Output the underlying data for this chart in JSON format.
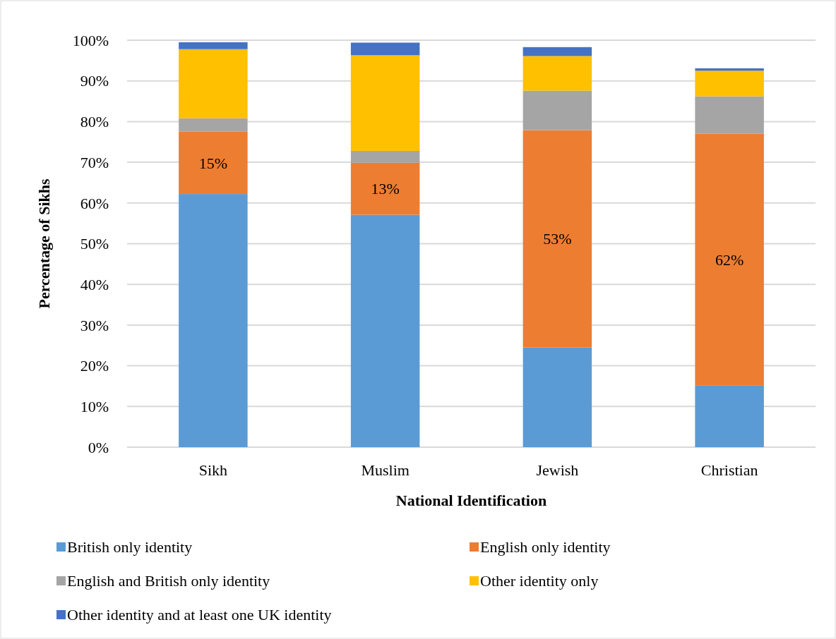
{
  "chart_data": {
    "type": "bar",
    "stacked": true,
    "xlabel": "National Identification",
    "ylabel": "Percentage of Sikhs",
    "categories": [
      "Sikh",
      "Muslim",
      "Jewish",
      "Christian"
    ],
    "ylim": [
      0,
      100
    ],
    "yticks": [
      {
        "value": 0,
        "label": "0%"
      },
      {
        "value": 10,
        "label": "10%"
      },
      {
        "value": 20,
        "label": "20%"
      },
      {
        "value": 30,
        "label": "30%"
      },
      {
        "value": 40,
        "label": "40%"
      },
      {
        "value": 50,
        "label": "50%"
      },
      {
        "value": 60,
        "label": "60%"
      },
      {
        "value": 70,
        "label": "70%"
      },
      {
        "value": 80,
        "label": "80%"
      },
      {
        "value": 90,
        "label": "90%"
      },
      {
        "value": 100,
        "label": "100%"
      }
    ],
    "grid": "y",
    "legend": "bottom",
    "series": [
      {
        "name": "British only identity",
        "color": "#5b9bd5",
        "values": [
          62.2,
          57.1,
          24.5,
          15.1
        ]
      },
      {
        "name": "English only identity",
        "color": "#ed7d31",
        "values": [
          15.3,
          12.8,
          53.4,
          61.9
        ],
        "value_labels": [
          "15%",
          "13%",
          "53%",
          "62%"
        ]
      },
      {
        "name": "English and British only identity",
        "color": "#a5a5a5",
        "values": [
          3.3,
          2.9,
          9.7,
          9.2
        ]
      },
      {
        "name": "Other identity only",
        "color": "#ffc000",
        "values": [
          17.0,
          23.5,
          8.5,
          6.3
        ]
      },
      {
        "name": "Other identity and at least one UK identity",
        "color": "#4472c4",
        "values": [
          1.7,
          3.1,
          2.2,
          0.6
        ]
      }
    ]
  }
}
